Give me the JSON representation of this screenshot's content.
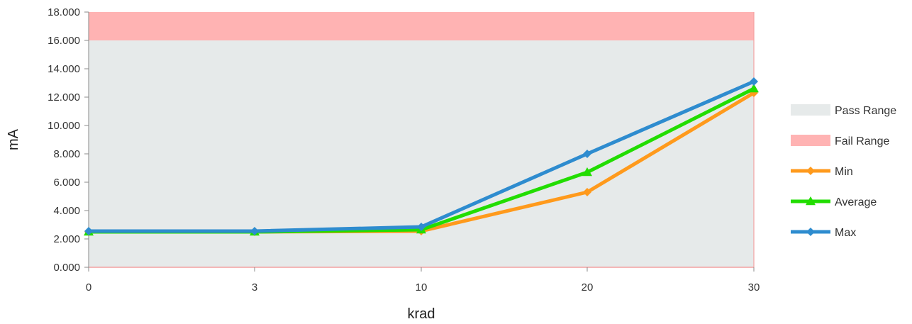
{
  "chart_data": {
    "type": "line",
    "title": "",
    "xlabel": "krad",
    "ylabel": "mA",
    "categories": [
      "0",
      "3",
      "10",
      "20",
      "30"
    ],
    "ylim": [
      0,
      18
    ],
    "y_ticks": [
      "0.000",
      "2.000",
      "4.000",
      "6.000",
      "8.000",
      "10.000",
      "12.000",
      "14.000",
      "16.000",
      "18.000"
    ],
    "bands": [
      {
        "name": "Pass Range",
        "from": 0,
        "to": 16,
        "color": "#e6eaea"
      },
      {
        "name": "Fail Range",
        "from": 16,
        "to": 18,
        "color": "#ffb3b3"
      }
    ],
    "series": [
      {
        "name": "Min",
        "color": "#ff9a1c",
        "marker": "diamond",
        "values": [
          2.5,
          2.5,
          2.55,
          5.3,
          12.3
        ]
      },
      {
        "name": "Average",
        "color": "#22dd00",
        "marker": "triangle",
        "values": [
          2.5,
          2.5,
          2.65,
          6.7,
          12.6
        ]
      },
      {
        "name": "Max",
        "color": "#2e8ccf",
        "marker": "diamond",
        "values": [
          2.55,
          2.55,
          2.85,
          8.0,
          13.1
        ]
      }
    ],
    "grid": false,
    "legend_position": "right"
  }
}
